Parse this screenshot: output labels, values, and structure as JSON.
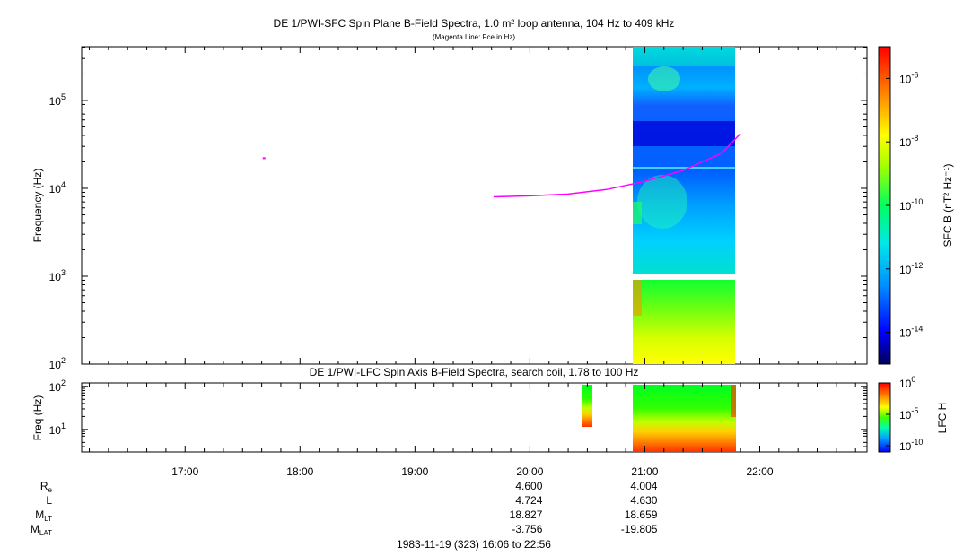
{
  "chart_data": [
    {
      "type": "heatmap",
      "title": "DE 1/PWI-SFC  Spin Plane B-Field Spectra, 1.0 m² loop antenna, 104 Hz to 409 kHz",
      "subtitle": "(Magenta Line: Fce in Hz)",
      "ylabel": "Frequency (Hz)",
      "y_scale": "log",
      "ylim": [
        100,
        409000
      ],
      "y_ticks": [
        {
          "value": 100,
          "base": "10",
          "exp": "2"
        },
        {
          "value": 1000,
          "base": "10",
          "exp": "3"
        },
        {
          "value": 10000,
          "base": "10",
          "exp": "4"
        },
        {
          "value": 100000,
          "base": "10",
          "exp": "5"
        }
      ],
      "colorbar": {
        "label": "SFC B (nT² Hz⁻¹)",
        "scale": "log",
        "range": [
          1e-15,
          1e-05
        ],
        "ticks": [
          {
            "value": 1e-06,
            "base": "10",
            "exp": "-6"
          },
          {
            "value": 1e-08,
            "base": "10",
            "exp": "-8"
          },
          {
            "value": 1e-10,
            "base": "10",
            "exp": "-10"
          },
          {
            "value": 1e-12,
            "base": "10",
            "exp": "-12"
          },
          {
            "value": 1e-14,
            "base": "10",
            "exp": "-14"
          }
        ]
      },
      "data_blocks": [
        {
          "t_start": "20:54",
          "t_end": "21:46",
          "f_min": 1080,
          "f_max": 409000,
          "level": "~1e-13 to 1e-10"
        },
        {
          "t_start": "20:54",
          "t_end": "21:46",
          "f_min": 100,
          "f_max": 880,
          "level": "~1e-11 to 1e-9"
        }
      ],
      "fce_line": {
        "name": "Fce",
        "points": [
          {
            "t": "19:41",
            "f": 8000
          },
          {
            "t": "20:00",
            "f": 8200
          },
          {
            "t": "20:20",
            "f": 8600
          },
          {
            "t": "20:40",
            "f": 9700
          },
          {
            "t": "21:00",
            "f": 12000
          },
          {
            "t": "21:20",
            "f": 16000
          },
          {
            "t": "21:40",
            "f": 25000
          },
          {
            "t": "21:50",
            "f": 42000
          }
        ],
        "isolated_point": {
          "t": "17:41",
          "f": 22000
        },
        "color": "#ff00ff"
      }
    },
    {
      "type": "heatmap",
      "title": "DE 1/PWI-LFC  Spin Axis B-Field Spectra, search coil, 1.78 to 100 Hz",
      "ylabel": "Freq (Hz)",
      "y_scale": "log",
      "ylim": [
        3,
        120
      ],
      "y_ticks": [
        {
          "value": 10,
          "base": "10",
          "exp": "1"
        },
        {
          "value": 100,
          "base": "10",
          "exp": "2"
        }
      ],
      "colorbar": {
        "label": "LFC H",
        "scale": "log",
        "range": [
          1e-11,
          1
        ],
        "ticks": [
          {
            "value": 1,
            "base": "10",
            "exp": "0"
          },
          {
            "value": 1e-05,
            "base": "10",
            "exp": "-5"
          },
          {
            "value": 1e-10,
            "base": "10",
            "exp": "-10"
          }
        ]
      },
      "data_blocks": [
        {
          "t_start": "20:27",
          "t_end": "20:32",
          "f_min": 8,
          "f_max": 100
        },
        {
          "t_start": "20:54",
          "t_end": "21:46",
          "f_min": 3,
          "f_max": 100
        }
      ]
    }
  ],
  "x_axis": {
    "ticks": [
      "17:00",
      "18:00",
      "19:00",
      "20:00",
      "21:00",
      "22:00"
    ],
    "time_range": [
      "16:06",
      "22:56"
    ]
  },
  "ephemeris": {
    "rows": [
      {
        "label": "R",
        "sub": "e",
        "values": [
          "4.600",
          "4.004"
        ]
      },
      {
        "label": "L",
        "sub": "",
        "values": [
          "4.724",
          "4.630"
        ]
      },
      {
        "label": "M",
        "sub": "LT",
        "values": [
          "18.827",
          "18.659"
        ]
      },
      {
        "label": "M",
        "sub": "LAT",
        "values": [
          "-3.756",
          "-19.805"
        ]
      }
    ],
    "value_times": [
      "20:00",
      "21:00"
    ]
  },
  "footer": "1983-11-19 (323) 16:06 to 22:56"
}
